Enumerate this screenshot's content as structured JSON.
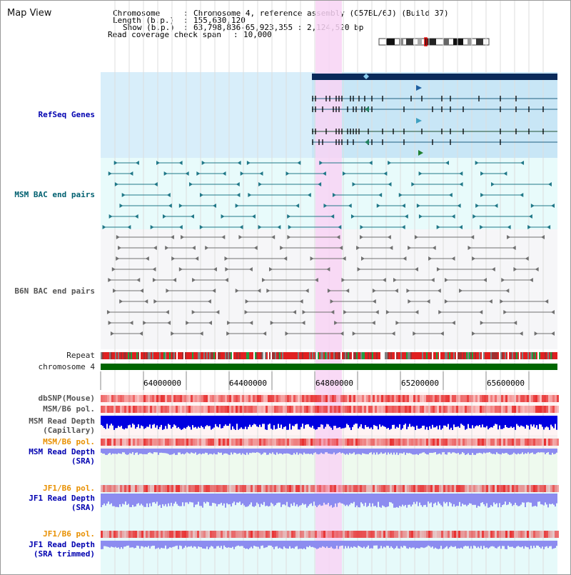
{
  "page": {
    "title": "Map View"
  },
  "info": {
    "chromosome_key": "Chromosome",
    "chromosome_val": "Chromosome 4, reference assembly (C57BL/6J) (Build 37)",
    "length_key": "Length (b.p.)",
    "length_val": "155,630,120",
    "show_key": "Show (b.p.)",
    "show_val": "63,798,836-65,923,355 : 2,124,520 bp",
    "coverage_key": "Read coverage check span",
    "coverage_val": "10,000"
  },
  "tracks": {
    "refseq": "RefSeq Genes",
    "msm_bac": "MSM BAC end pairs",
    "b6n_bac": "B6N BAC end pairs",
    "repeat": "Repeat",
    "chromosome": "chromosome 4",
    "dbsnp": "dbSNP(Mouse)",
    "msm_b6_pol_1": "MSM/B6 pol.",
    "msm_depth_cap_1": "MSM Read Depth",
    "msm_depth_cap_2": "(Capillary)",
    "msm_b6_pol_2": "MSM/B6 pol.",
    "msm_depth_sra_1": "MSM Read Depth",
    "msm_depth_sra_2": "(SRA)",
    "jf1_b6_pol_1": "JF1/B6 pol.",
    "jf1_depth_sra_1": "JF1 Read Depth",
    "jf1_depth_sra_2": "(SRA)",
    "jf1_b6_pol_2": "JF1/B6 pol.",
    "jf1_depth_trim_1": "JF1 Read Depth",
    "jf1_depth_trim_2": "(SRA trimmed)"
  },
  "axis": {
    "ticks": [
      "64000000",
      "64400000",
      "64800000",
      "65200000",
      "65600000"
    ]
  },
  "colors": {
    "refseq_bg": "#d8eefa",
    "msm_bg": "#e8fbfb",
    "b6n_bg": "#f6f6f8",
    "highlight": "#f8d4f4",
    "chromosome_bar": "#006600",
    "depth_blue": "#0000e0",
    "depth_light": "#8c8cf0",
    "pol_red": "#e83030"
  }
}
